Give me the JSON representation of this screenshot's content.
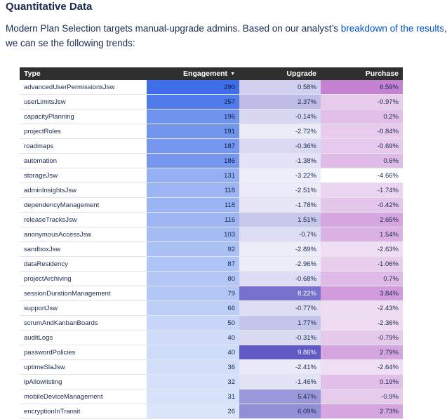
{
  "heading": "Quantitative Data",
  "intro": {
    "line1_before": "Modern Plan Selection targets manual-upgrade admins. Based on our analyst’s ",
    "link": "breakdown of the results",
    "line1_after": ",",
    "line2": "we can se the following trends:"
  },
  "table": {
    "headers": {
      "type": "Type",
      "engagement": "Engagement",
      "upgrade": "Upgrade",
      "purchase": "Purchase"
    },
    "sort_icon": "caret-down-icon",
    "colors": {
      "engagement": "#3f6ee8",
      "upgrade_pos": "#5f5ac4",
      "upgrade_neg": "#c9ccea",
      "purchase_pos": "#c582d3",
      "purchase_neg": "#ffffff"
    },
    "rows": [
      {
        "type": "advancedUserPermissionsJsw",
        "engagement": 290,
        "upgrade": "0.58%",
        "purchase": "6.59%"
      },
      {
        "type": "userLimitsJsw",
        "engagement": 257,
        "upgrade": "2.37%",
        "purchase": "-0.97%"
      },
      {
        "type": "capacityPlanning",
        "engagement": 196,
        "upgrade": "-0.14%",
        "purchase": "0.2%"
      },
      {
        "type": "projectRoles",
        "engagement": 191,
        "upgrade": "-2.72%",
        "purchase": "-0.84%"
      },
      {
        "type": "roadmaps",
        "engagement": 187,
        "upgrade": "-0.36%",
        "purchase": "-0.69%"
      },
      {
        "type": "automation",
        "engagement": 186,
        "upgrade": "-1.38%",
        "purchase": "0.6%"
      },
      {
        "type": "storageJsw",
        "engagement": 131,
        "upgrade": "-3.22%",
        "purchase": "-4.66%"
      },
      {
        "type": "adminInsightsJsw",
        "engagement": 118,
        "upgrade": "-2.51%",
        "purchase": "-1.74%"
      },
      {
        "type": "dependencyManagement",
        "engagement": 118,
        "upgrade": "-1.78%",
        "purchase": "-0.42%"
      },
      {
        "type": "releaseTracksJsw",
        "engagement": 116,
        "upgrade": "1.51%",
        "purchase": "2.65%"
      },
      {
        "type": "anonymousAccessJsw",
        "engagement": 103,
        "upgrade": "-0.7%",
        "purchase": "1.54%"
      },
      {
        "type": "sandboxJsw",
        "engagement": 92,
        "upgrade": "-2.89%",
        "purchase": "-2.63%"
      },
      {
        "type": "dataResidency",
        "engagement": 87,
        "upgrade": "-2.96%",
        "purchase": "-1.06%"
      },
      {
        "type": "projectArchiving",
        "engagement": 80,
        "upgrade": "-0.68%",
        "purchase": "0.7%"
      },
      {
        "type": "sessionDurationManagement",
        "engagement": 79,
        "upgrade": "8.22%",
        "purchase": "3.84%"
      },
      {
        "type": "supportJsw",
        "engagement": 66,
        "upgrade": "-0.77%",
        "purchase": "-2.43%"
      },
      {
        "type": "scrumAndKanbanBoards",
        "engagement": 50,
        "upgrade": "1.77%",
        "purchase": "-2.36%"
      },
      {
        "type": "auditLogs",
        "engagement": 40,
        "upgrade": "-0.31%",
        "purchase": "-0.79%"
      },
      {
        "type": "passwordPolicies",
        "engagement": 40,
        "upgrade": "9.86%",
        "purchase": "2.79%"
      },
      {
        "type": "uptimeSlaJsw",
        "engagement": 36,
        "upgrade": "-2.41%",
        "purchase": "-2.64%"
      },
      {
        "type": "ipAllowlisting",
        "engagement": 32,
        "upgrade": "-1.46%",
        "purchase": "0.19%"
      },
      {
        "type": "mobileDeviceManagement",
        "engagement": 31,
        "upgrade": "5.47%",
        "purchase": "-0.9%"
      },
      {
        "type": "encryptionInTransit",
        "engagement": 26,
        "upgrade": "6.09%",
        "purchase": "2.73%"
      }
    ]
  }
}
